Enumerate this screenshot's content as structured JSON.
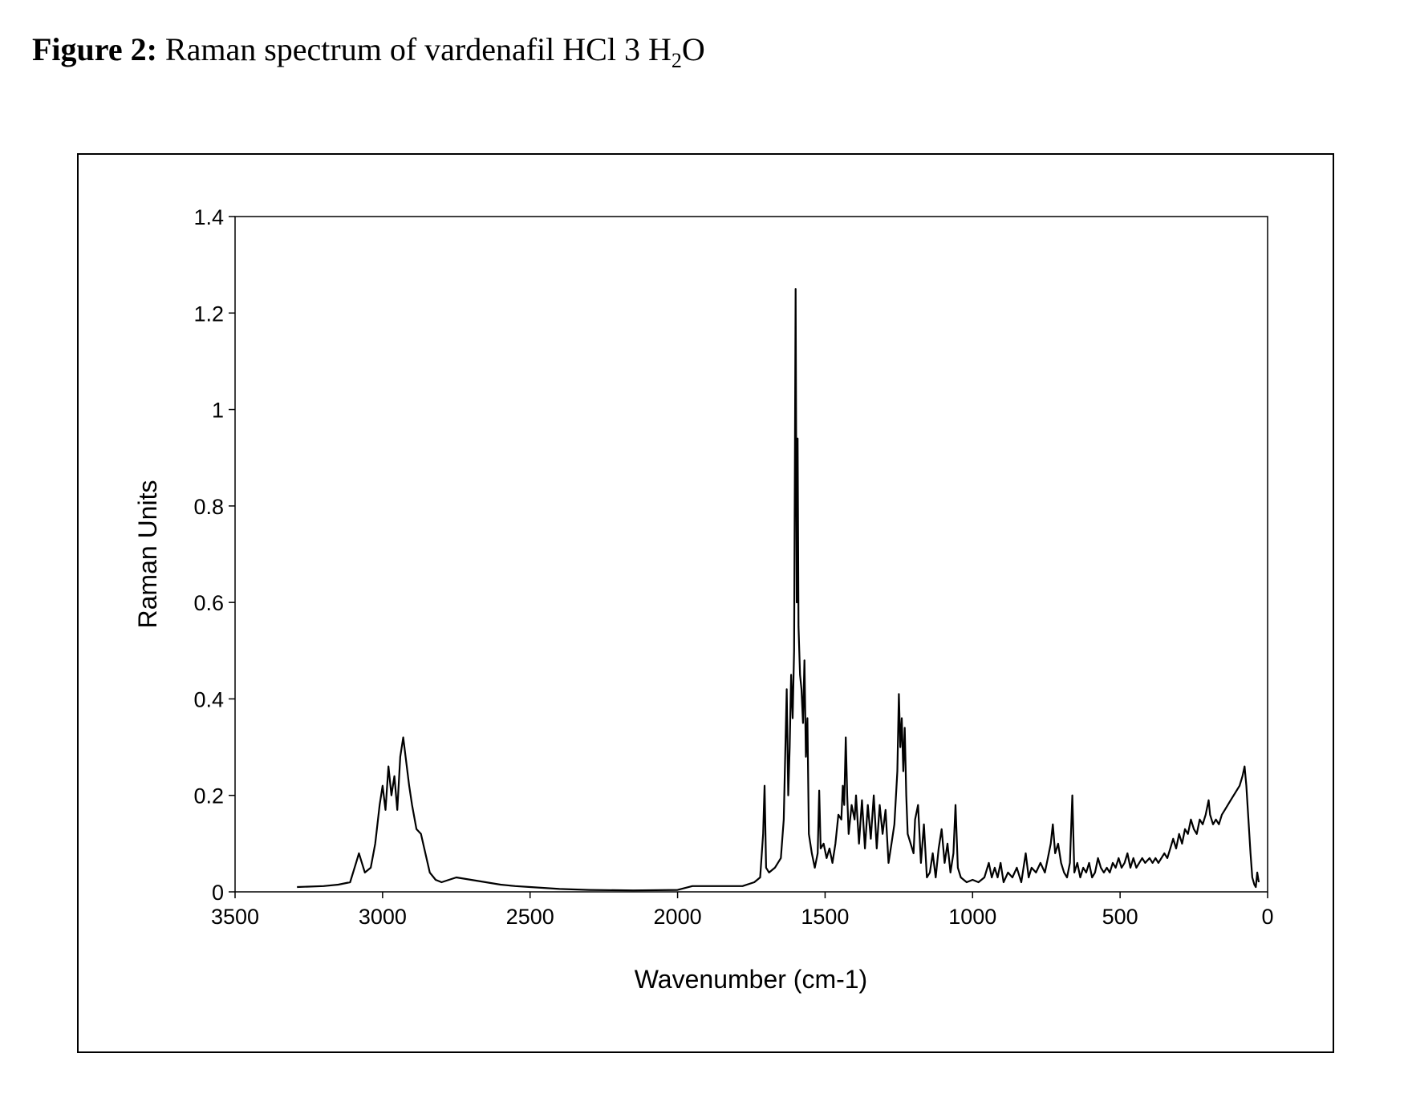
{
  "figure": {
    "label": "Figure 2:",
    "title_main": " Raman spectrum of vardenafil HCl 3 H",
    "title_sub": "2",
    "title_end": "O"
  },
  "chart_data": {
    "type": "line",
    "xlabel": "Wavenumber (cm-1)",
    "ylabel": "Raman Units",
    "xlim": [
      3500,
      0
    ],
    "ylim": [
      0,
      1.4
    ],
    "x_reversed": true,
    "grid": false,
    "legend": "none",
    "x_ticks": [
      "3500",
      "3000",
      "2500",
      "2000",
      "1500",
      "1000",
      "500",
      "0"
    ],
    "y_ticks": [
      "0",
      "0.2",
      "0.4",
      "0.6",
      "0.8",
      "1",
      "1.2",
      "1.4"
    ],
    "line_color": "#000000",
    "series": [
      {
        "points": [
          [
            3290,
            0.01
          ],
          [
            3200,
            0.012
          ],
          [
            3150,
            0.015
          ],
          [
            3110,
            0.02
          ],
          [
            3090,
            0.06
          ],
          [
            3080,
            0.08
          ],
          [
            3070,
            0.06
          ],
          [
            3060,
            0.04
          ],
          [
            3040,
            0.05
          ],
          [
            3025,
            0.1
          ],
          [
            3010,
            0.18
          ],
          [
            3000,
            0.22
          ],
          [
            2990,
            0.17
          ],
          [
            2980,
            0.26
          ],
          [
            2970,
            0.2
          ],
          [
            2960,
            0.24
          ],
          [
            2950,
            0.17
          ],
          [
            2940,
            0.28
          ],
          [
            2930,
            0.32
          ],
          [
            2920,
            0.27
          ],
          [
            2910,
            0.22
          ],
          [
            2900,
            0.18
          ],
          [
            2885,
            0.13
          ],
          [
            2870,
            0.12
          ],
          [
            2855,
            0.08
          ],
          [
            2840,
            0.04
          ],
          [
            2820,
            0.025
          ],
          [
            2800,
            0.02
          ],
          [
            2750,
            0.03
          ],
          [
            2700,
            0.025
          ],
          [
            2650,
            0.02
          ],
          [
            2600,
            0.015
          ],
          [
            2550,
            0.012
          ],
          [
            2500,
            0.01
          ],
          [
            2400,
            0.006
          ],
          [
            2300,
            0.004
          ],
          [
            2150,
            0.003
          ],
          [
            2000,
            0.004
          ],
          [
            1950,
            0.012
          ],
          [
            1850,
            0.012
          ],
          [
            1780,
            0.012
          ],
          [
            1740,
            0.02
          ],
          [
            1720,
            0.03
          ],
          [
            1710,
            0.12
          ],
          [
            1705,
            0.22
          ],
          [
            1700,
            0.05
          ],
          [
            1690,
            0.04
          ],
          [
            1670,
            0.05
          ],
          [
            1650,
            0.07
          ],
          [
            1640,
            0.15
          ],
          [
            1630,
            0.42
          ],
          [
            1625,
            0.2
          ],
          [
            1620,
            0.3
          ],
          [
            1615,
            0.45
          ],
          [
            1610,
            0.36
          ],
          [
            1605,
            0.5
          ],
          [
            1600,
            1.25
          ],
          [
            1596,
            0.6
          ],
          [
            1593,
            0.94
          ],
          [
            1590,
            0.55
          ],
          [
            1585,
            0.45
          ],
          [
            1580,
            0.42
          ],
          [
            1575,
            0.35
          ],
          [
            1570,
            0.48
          ],
          [
            1565,
            0.28
          ],
          [
            1560,
            0.36
          ],
          [
            1555,
            0.12
          ],
          [
            1545,
            0.08
          ],
          [
            1535,
            0.05
          ],
          [
            1525,
            0.08
          ],
          [
            1520,
            0.21
          ],
          [
            1515,
            0.09
          ],
          [
            1505,
            0.1
          ],
          [
            1495,
            0.07
          ],
          [
            1485,
            0.09
          ],
          [
            1475,
            0.06
          ],
          [
            1465,
            0.1
          ],
          [
            1455,
            0.16
          ],
          [
            1445,
            0.15
          ],
          [
            1440,
            0.22
          ],
          [
            1435,
            0.18
          ],
          [
            1430,
            0.32
          ],
          [
            1425,
            0.2
          ],
          [
            1420,
            0.12
          ],
          [
            1410,
            0.18
          ],
          [
            1400,
            0.15
          ],
          [
            1395,
            0.2
          ],
          [
            1385,
            0.1
          ],
          [
            1375,
            0.19
          ],
          [
            1365,
            0.09
          ],
          [
            1355,
            0.18
          ],
          [
            1345,
            0.11
          ],
          [
            1335,
            0.2
          ],
          [
            1325,
            0.09
          ],
          [
            1315,
            0.18
          ],
          [
            1305,
            0.12
          ],
          [
            1295,
            0.17
          ],
          [
            1285,
            0.06
          ],
          [
            1275,
            0.1
          ],
          [
            1265,
            0.14
          ],
          [
            1255,
            0.25
          ],
          [
            1250,
            0.41
          ],
          [
            1245,
            0.3
          ],
          [
            1240,
            0.36
          ],
          [
            1235,
            0.25
          ],
          [
            1230,
            0.34
          ],
          [
            1225,
            0.2
          ],
          [
            1220,
            0.12
          ],
          [
            1210,
            0.1
          ],
          [
            1200,
            0.08
          ],
          [
            1195,
            0.15
          ],
          [
            1185,
            0.18
          ],
          [
            1175,
            0.06
          ],
          [
            1165,
            0.14
          ],
          [
            1155,
            0.03
          ],
          [
            1145,
            0.04
          ],
          [
            1135,
            0.08
          ],
          [
            1125,
            0.03
          ],
          [
            1115,
            0.09
          ],
          [
            1105,
            0.13
          ],
          [
            1095,
            0.06
          ],
          [
            1085,
            0.1
          ],
          [
            1075,
            0.04
          ],
          [
            1065,
            0.08
          ],
          [
            1058,
            0.18
          ],
          [
            1050,
            0.05
          ],
          [
            1040,
            0.03
          ],
          [
            1020,
            0.02
          ],
          [
            1000,
            0.025
          ],
          [
            980,
            0.02
          ],
          [
            960,
            0.03
          ],
          [
            945,
            0.06
          ],
          [
            935,
            0.03
          ],
          [
            925,
            0.05
          ],
          [
            915,
            0.03
          ],
          [
            905,
            0.06
          ],
          [
            895,
            0.02
          ],
          [
            880,
            0.04
          ],
          [
            865,
            0.03
          ],
          [
            850,
            0.05
          ],
          [
            835,
            0.02
          ],
          [
            820,
            0.08
          ],
          [
            810,
            0.03
          ],
          [
            800,
            0.05
          ],
          [
            785,
            0.04
          ],
          [
            770,
            0.06
          ],
          [
            755,
            0.04
          ],
          [
            745,
            0.07
          ],
          [
            735,
            0.1
          ],
          [
            728,
            0.14
          ],
          [
            720,
            0.08
          ],
          [
            710,
            0.1
          ],
          [
            700,
            0.06
          ],
          [
            690,
            0.04
          ],
          [
            680,
            0.03
          ],
          [
            670,
            0.06
          ],
          [
            662,
            0.2
          ],
          [
            655,
            0.04
          ],
          [
            645,
            0.06
          ],
          [
            635,
            0.03
          ],
          [
            625,
            0.05
          ],
          [
            615,
            0.04
          ],
          [
            605,
            0.06
          ],
          [
            595,
            0.03
          ],
          [
            585,
            0.04
          ],
          [
            575,
            0.07
          ],
          [
            565,
            0.05
          ],
          [
            555,
            0.04
          ],
          [
            545,
            0.05
          ],
          [
            535,
            0.04
          ],
          [
            525,
            0.06
          ],
          [
            515,
            0.05
          ],
          [
            505,
            0.07
          ],
          [
            495,
            0.05
          ],
          [
            485,
            0.06
          ],
          [
            475,
            0.08
          ],
          [
            465,
            0.05
          ],
          [
            455,
            0.07
          ],
          [
            445,
            0.05
          ],
          [
            435,
            0.06
          ],
          [
            425,
            0.07
          ],
          [
            415,
            0.06
          ],
          [
            400,
            0.07
          ],
          [
            390,
            0.06
          ],
          [
            380,
            0.07
          ],
          [
            370,
            0.06
          ],
          [
            360,
            0.07
          ],
          [
            350,
            0.08
          ],
          [
            340,
            0.07
          ],
          [
            330,
            0.09
          ],
          [
            320,
            0.11
          ],
          [
            310,
            0.09
          ],
          [
            300,
            0.12
          ],
          [
            290,
            0.1
          ],
          [
            280,
            0.13
          ],
          [
            270,
            0.12
          ],
          [
            260,
            0.15
          ],
          [
            250,
            0.13
          ],
          [
            240,
            0.12
          ],
          [
            230,
            0.15
          ],
          [
            220,
            0.14
          ],
          [
            210,
            0.16
          ],
          [
            200,
            0.19
          ],
          [
            195,
            0.16
          ],
          [
            185,
            0.14
          ],
          [
            175,
            0.15
          ],
          [
            165,
            0.14
          ],
          [
            155,
            0.16
          ],
          [
            145,
            0.17
          ],
          [
            135,
            0.18
          ],
          [
            125,
            0.19
          ],
          [
            115,
            0.2
          ],
          [
            105,
            0.21
          ],
          [
            95,
            0.22
          ],
          [
            85,
            0.24
          ],
          [
            78,
            0.26
          ],
          [
            72,
            0.22
          ],
          [
            65,
            0.15
          ],
          [
            58,
            0.08
          ],
          [
            52,
            0.03
          ],
          [
            45,
            0.015
          ],
          [
            40,
            0.01
          ],
          [
            35,
            0.04
          ],
          [
            30,
            0.02
          ]
        ]
      }
    ]
  }
}
